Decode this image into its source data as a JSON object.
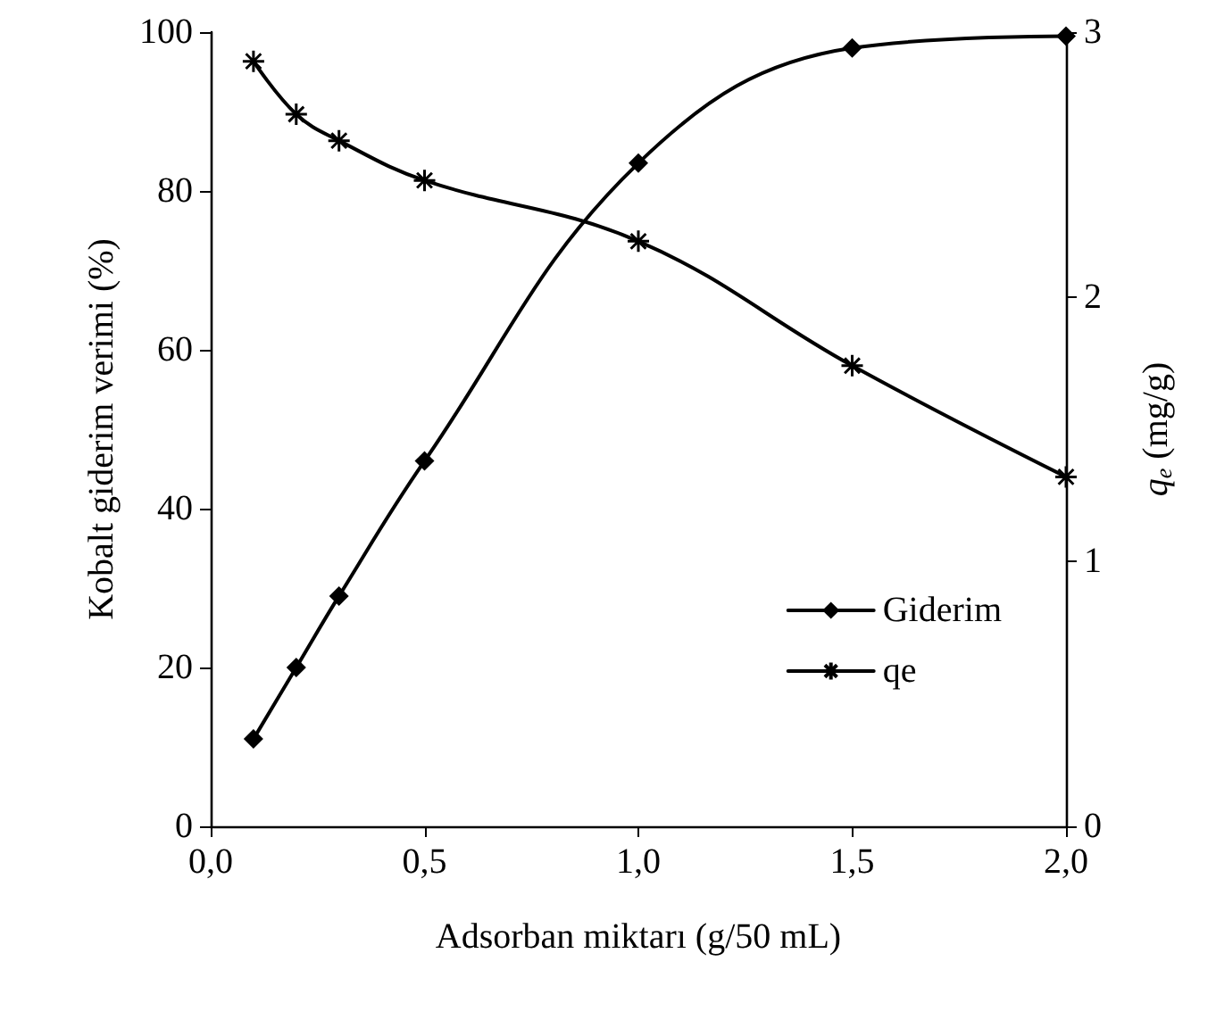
{
  "chart_data": {
    "type": "line",
    "xlabel": "Adsorban miktarı (g/50 mL)",
    "ylabel": "Kobalt giderim verimi (%)",
    "y2label": "q$_{e}$ (mg/g)",
    "xlim": [
      0,
      2
    ],
    "xticks": [
      {
        "value": 0,
        "label": "0,0"
      },
      {
        "value": 0.5,
        "label": "0,5"
      },
      {
        "value": 1,
        "label": "1,0"
      },
      {
        "value": 1.5,
        "label": "1,5"
      },
      {
        "value": 2,
        "label": "2,0"
      }
    ],
    "ylim": [
      0,
      100
    ],
    "yticks": [
      0,
      20,
      40,
      60,
      80,
      100
    ],
    "y2lim": [
      0,
      3
    ],
    "y2ticks": [
      0,
      1,
      2,
      3
    ],
    "grid": false,
    "legend": "bottom right",
    "series": [
      {
        "name": "Giderim",
        "color": "#000000",
        "marker": "diamond",
        "x": [
          0.1,
          0.2,
          0.3,
          0.5,
          1.0,
          1.5,
          2.0
        ],
        "values": [
          11,
          20,
          29,
          46,
          83.5,
          98,
          99.5
        ]
      },
      {
        "name": "qe",
        "color": "#000000",
        "marker": "cross",
        "axis": "y2",
        "x": [
          0.1,
          0.2,
          0.3,
          0.5,
          1.0,
          1.5,
          2.0
        ],
        "values": [
          2.89,
          2.69,
          2.59,
          2.44,
          2.21,
          1.74,
          1.32
        ]
      }
    ]
  }
}
